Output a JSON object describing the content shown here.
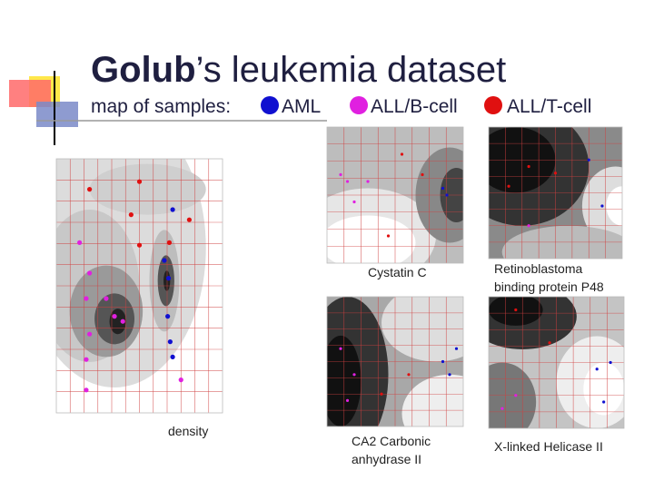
{
  "header": {
    "title_bold": "Golub",
    "title_rest": "’s leukemia dataset"
  },
  "legend": {
    "label": "map of samples:",
    "items": [
      "AML",
      "ALL/B-cell",
      "ALL/T-cell"
    ]
  },
  "panels": [
    {
      "caption": [
        "density"
      ]
    },
    {
      "caption": [
        "Cystatin C"
      ]
    },
    {
      "caption": [
        "Retinoblastoma",
        "binding protein P48"
      ]
    },
    {
      "caption": [
        "CA2 Carbonic",
        "anhydrase II"
      ]
    },
    {
      "caption": [
        "X-linked Helicase II"
      ]
    }
  ]
}
